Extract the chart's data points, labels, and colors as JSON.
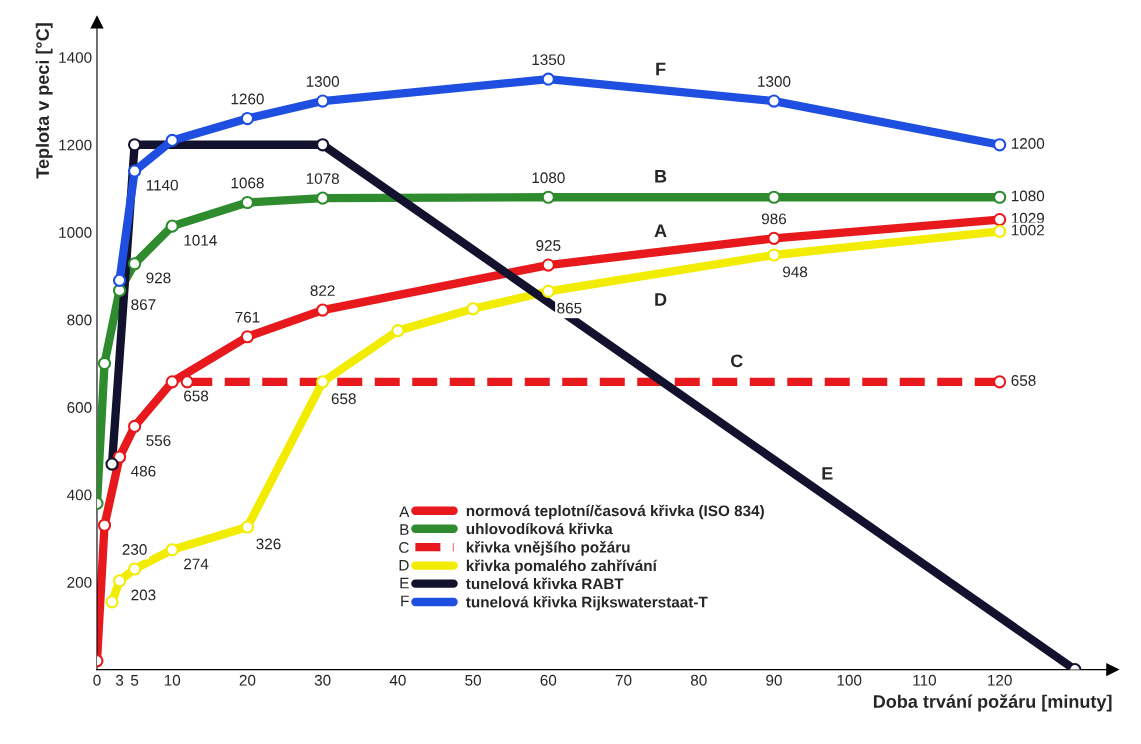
{
  "chart_data": {
    "type": "line",
    "xlabel": "Doba trvání požáru [minuty]",
    "ylabel": "Teplota v peci [°C]",
    "xlim": [
      0,
      135
    ],
    "ylim": [
      0,
      1480
    ],
    "xticks": [
      0,
      3,
      5,
      10,
      20,
      30,
      40,
      50,
      60,
      70,
      80,
      90,
      100,
      110,
      120
    ],
    "yticks": [
      200,
      400,
      600,
      800,
      1000,
      1200,
      1400
    ],
    "grid": false,
    "legend": "bottom",
    "marker": "circle",
    "series": [
      {
        "name": "normová teplotní/časová křivka (ISO 834)",
        "color": "#e8191c",
        "x": [
          0,
          1,
          3,
          5,
          10,
          20,
          30,
          60,
          90,
          120
        ],
        "values": [
          20,
          330,
          486,
          556,
          658,
          761,
          822,
          925,
          986,
          1029
        ],
        "value_labels": [
          null,
          null,
          "486",
          "556",
          "658",
          "761",
          "822",
          "925",
          "986",
          "1029"
        ]
      },
      {
        "name": "uhlovodíková křivka",
        "color": "#2e8b2e",
        "x": [
          0,
          1,
          3,
          5,
          10,
          20,
          30,
          60,
          90,
          120
        ],
        "values": [
          380,
          700,
          867,
          928,
          1014,
          1068,
          1078,
          1080,
          1080,
          1080
        ],
        "value_labels": [
          null,
          null,
          "867",
          "928",
          "1014",
          "1068",
          "1078",
          "1080",
          null,
          "1080"
        ]
      },
      {
        "name": "křivka vnějšího požáru",
        "color": "#e8191c",
        "line_style": "dashed",
        "x": [
          12,
          120
        ],
        "values": [
          658,
          658
        ],
        "value_labels": [
          null,
          "658"
        ]
      },
      {
        "name": "křivka pomalého zahřívání",
        "color": "#f2ec00",
        "x": [
          2,
          3,
          5,
          10,
          20,
          30,
          40,
          50,
          60,
          90,
          120
        ],
        "values": [
          155,
          203,
          230,
          274,
          326,
          658,
          775,
          825,
          865,
          948,
          1002
        ],
        "value_labels": [
          null,
          "203",
          "230",
          "274",
          "326",
          "658",
          null,
          null,
          "865",
          "948",
          "1002"
        ]
      },
      {
        "name": "tunelová křivka RABT",
        "color": "#12122e",
        "x": [
          2,
          5,
          30,
          130
        ],
        "values": [
          470,
          1200,
          1200,
          0
        ]
      },
      {
        "name": "tunelová křivka Rijkswaterstaat-T",
        "color": "#1f4fe0",
        "x": [
          3,
          5,
          10,
          20,
          30,
          60,
          90,
          120
        ],
        "values": [
          890,
          1140,
          1210,
          1260,
          1300,
          1350,
          1300,
          1200
        ],
        "value_labels": [
          null,
          "1140",
          null,
          "1260",
          "1300",
          "1350",
          "1300",
          "1200"
        ]
      }
    ],
    "annotations": [
      "A",
      "B",
      "C",
      "D",
      "E",
      "F"
    ]
  }
}
